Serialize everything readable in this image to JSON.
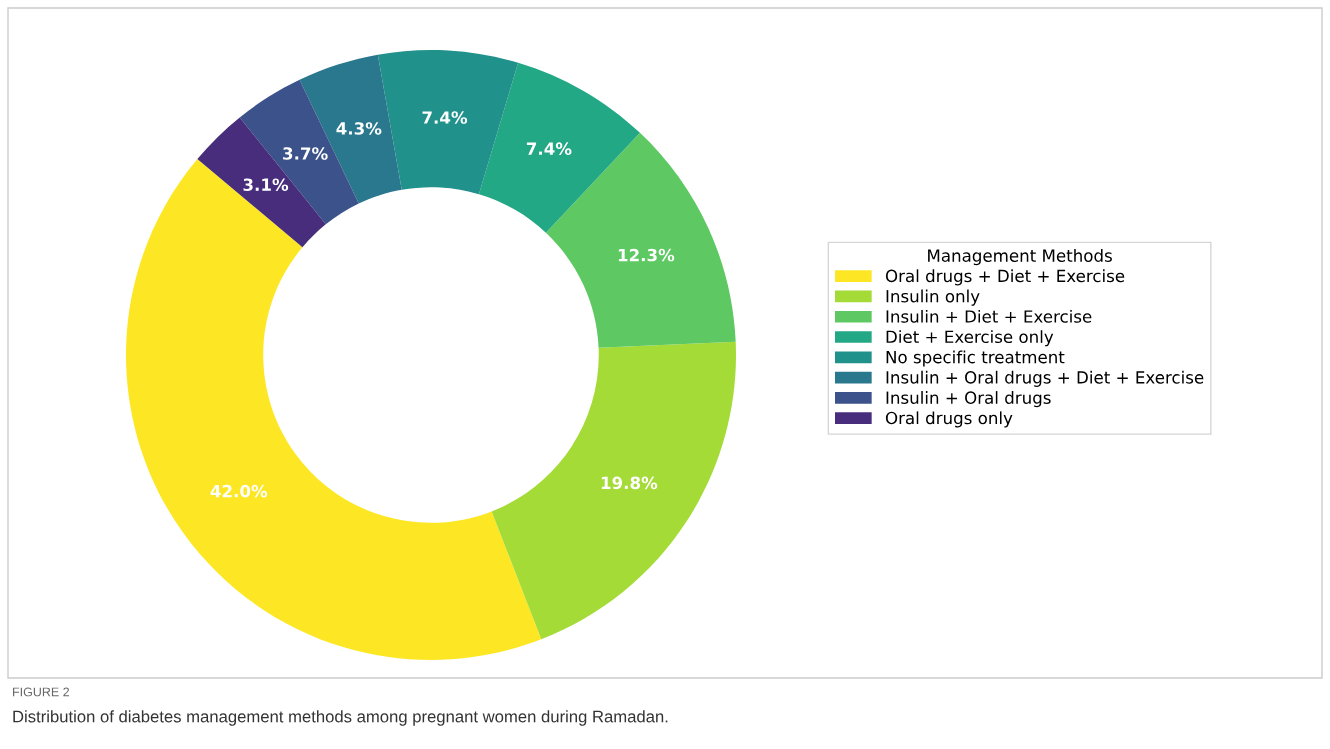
{
  "chart_data": {
    "type": "donut",
    "legend_title": "Management Methods",
    "legend": "right",
    "categories": [
      "Oral drugs + Diet + Exercise",
      "Insulin only",
      "Insulin + Diet + Exercise",
      "Diet + Exercise only",
      "No specific treatment",
      "Insulin + Oral drugs + Diet + Exercise",
      "Insulin + Oral drugs",
      "Oral drugs only"
    ],
    "values": [
      42.0,
      19.8,
      12.3,
      7.4,
      7.4,
      4.3,
      3.7,
      3.1
    ],
    "colors": [
      "#fde725",
      "#a5db36",
      "#5ec962",
      "#22a884",
      "#21918c",
      "#2a788e",
      "#3b528b",
      "#472d7b"
    ],
    "value_labels": [
      "42.0%",
      "19.8%",
      "12.3%",
      "7.4%",
      "7.4%",
      "4.3%",
      "3.7%",
      "3.1%"
    ],
    "annotations": [
      "FIGURE 2",
      "Distribution of diabetes management methods among pregnant women during Ramadan."
    ]
  }
}
